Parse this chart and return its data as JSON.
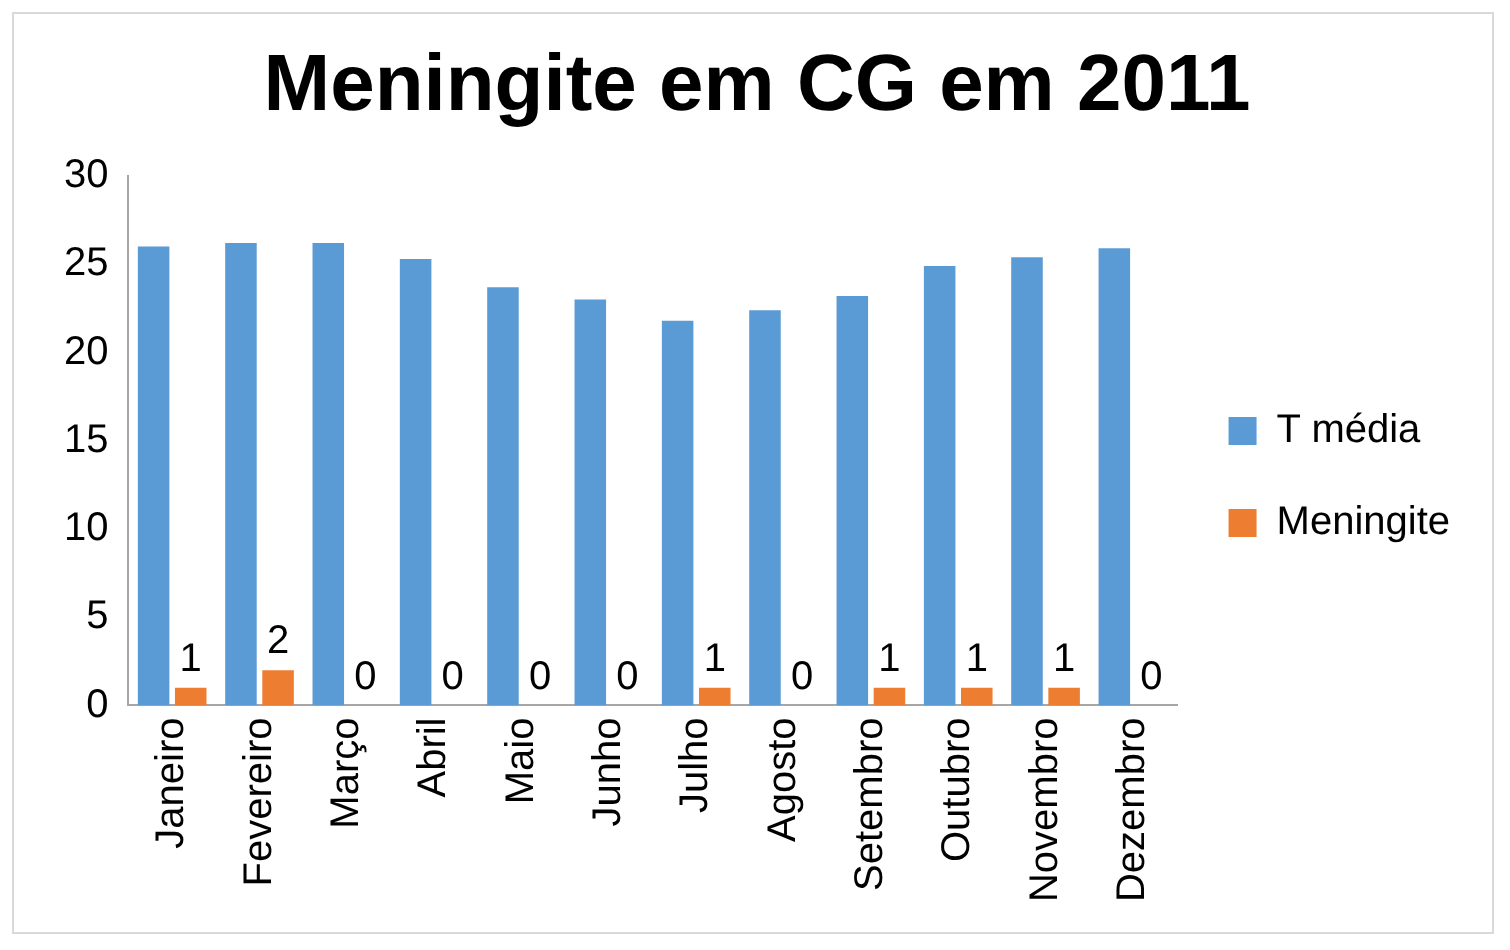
{
  "chart_data": {
    "type": "bar",
    "title": "Meningite em CG em 2011",
    "categories": [
      "Janeiro",
      "Fevereiro",
      "Março",
      "Abril",
      "Maio",
      "Junho",
      "Julho",
      "Agosto",
      "Setembro",
      "Outubro",
      "Novembro",
      "Dezembro"
    ],
    "series": [
      {
        "name": "T média",
        "color": "#5b9bd5",
        "values": [
          26.0,
          26.2,
          26.2,
          25.3,
          23.7,
          23.0,
          21.8,
          22.4,
          23.2,
          24.9,
          25.4,
          25.9
        ]
      },
      {
        "name": "Meningite",
        "color": "#ed7d31",
        "values": [
          1,
          2,
          0,
          0,
          0,
          0,
          1,
          0,
          1,
          1,
          1,
          0
        ],
        "value_labels": [
          "1",
          "2",
          "0",
          "0",
          "0",
          "0",
          "1",
          "0",
          "1",
          "1",
          "1",
          "0"
        ]
      }
    ],
    "ylim": [
      0,
      30
    ],
    "yticks": [
      0,
      5,
      10,
      15,
      20,
      25,
      30
    ],
    "grid": false,
    "legend": "right"
  }
}
